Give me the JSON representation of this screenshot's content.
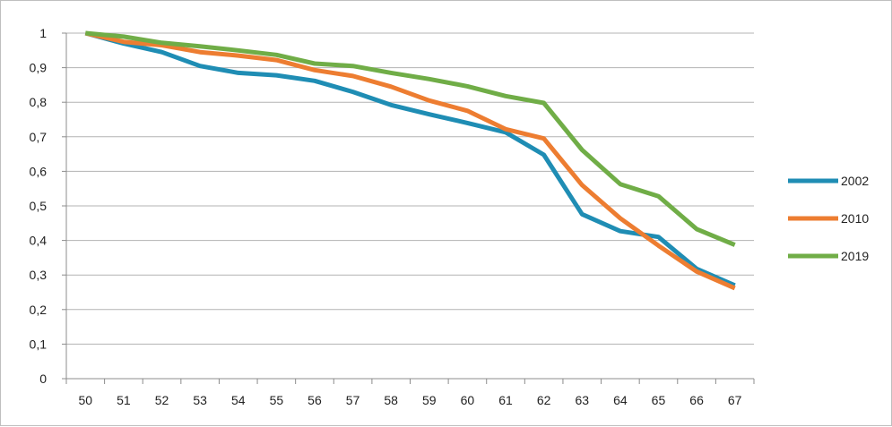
{
  "chart_data": {
    "type": "line",
    "title": "",
    "xlabel": "",
    "ylabel": "",
    "categories": [
      "50",
      "51",
      "52",
      "53",
      "54",
      "55",
      "56",
      "57",
      "58",
      "59",
      "60",
      "61",
      "62",
      "63",
      "64",
      "65",
      "66",
      "67"
    ],
    "y_ticks": [
      "0",
      "0,1",
      "0,2",
      "0,3",
      "0,4",
      "0,5",
      "0,6",
      "0,7",
      "0,8",
      "0,9",
      "1"
    ],
    "ylim": [
      0,
      1
    ],
    "grid": true,
    "legend_position": "right",
    "series": [
      {
        "name": "2002",
        "color": "#1f8db4",
        "values": [
          1.0,
          0.97,
          0.945,
          0.905,
          0.885,
          0.878,
          0.862,
          0.83,
          0.792,
          0.765,
          0.74,
          0.713,
          0.648,
          0.476,
          0.427,
          0.41,
          0.318,
          0.27
        ]
      },
      {
        "name": "2010",
        "color": "#ed7d31",
        "values": [
          1.0,
          0.975,
          0.965,
          0.945,
          0.935,
          0.922,
          0.893,
          0.876,
          0.845,
          0.805,
          0.775,
          0.722,
          0.695,
          0.56,
          0.464,
          0.385,
          0.31,
          0.262
        ]
      },
      {
        "name": "2019",
        "color": "#70ad47",
        "values": [
          1.0,
          0.99,
          0.972,
          0.962,
          0.95,
          0.937,
          0.912,
          0.905,
          0.885,
          0.867,
          0.846,
          0.818,
          0.798,
          0.662,
          0.563,
          0.528,
          0.433,
          0.387
        ]
      }
    ]
  }
}
